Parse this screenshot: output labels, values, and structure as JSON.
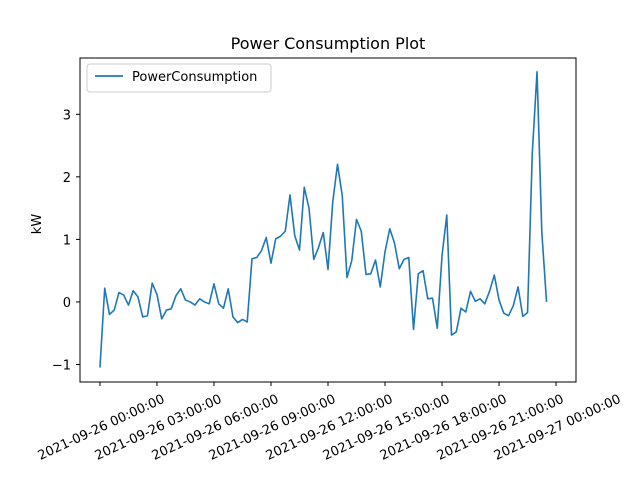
{
  "chart_data": {
    "type": "line",
    "title": "Power Consumption Plot",
    "xlabel": "",
    "ylabel": "kW",
    "x_tick_labels": [
      "2021-09-26 00:00:00",
      "2021-09-26 03:00:00",
      "2021-09-26 06:00:00",
      "2021-09-26 09:00:00",
      "2021-09-26 12:00:00",
      "2021-09-26 15:00:00",
      "2021-09-26 18:00:00",
      "2021-09-26 21:00:00",
      "2021-09-27 00:00:00"
    ],
    "y_ticks": [
      -1,
      0,
      1,
      2,
      3
    ],
    "xlim": [
      "2021-09-25 22:57:00",
      "2021-09-27 01:03:00"
    ],
    "ylim": [
      -1.28,
      3.9
    ],
    "grid": false,
    "legend_position": "top-left",
    "series": [
      {
        "name": "PowerConsumption",
        "color": "#1f77b4",
        "points": [
          [
            "2021-09-26 00:00",
            -1.05
          ],
          [
            "2021-09-26 00:15",
            0.22
          ],
          [
            "2021-09-26 00:30",
            -0.2
          ],
          [
            "2021-09-26 00:45",
            -0.13
          ],
          [
            "2021-09-26 01:00",
            0.15
          ],
          [
            "2021-09-26 01:15",
            0.11
          ],
          [
            "2021-09-26 01:30",
            -0.05
          ],
          [
            "2021-09-26 01:45",
            0.18
          ],
          [
            "2021-09-26 02:00",
            0.08
          ],
          [
            "2021-09-26 02:15",
            -0.24
          ],
          [
            "2021-09-26 02:30",
            -0.22
          ],
          [
            "2021-09-26 02:45",
            0.3
          ],
          [
            "2021-09-26 03:00",
            0.12
          ],
          [
            "2021-09-26 03:15",
            -0.27
          ],
          [
            "2021-09-26 03:30",
            -0.13
          ],
          [
            "2021-09-26 03:45",
            -0.11
          ],
          [
            "2021-09-26 04:00",
            0.1
          ],
          [
            "2021-09-26 04:15",
            0.21
          ],
          [
            "2021-09-26 04:30",
            0.03
          ],
          [
            "2021-09-26 04:45",
            0.0
          ],
          [
            "2021-09-26 05:00",
            -0.05
          ],
          [
            "2021-09-26 05:15",
            0.05
          ],
          [
            "2021-09-26 05:30",
            0.0
          ],
          [
            "2021-09-26 05:45",
            -0.03
          ],
          [
            "2021-09-26 06:00",
            0.29
          ],
          [
            "2021-09-26 06:15",
            -0.03
          ],
          [
            "2021-09-26 06:30",
            -0.1
          ],
          [
            "2021-09-26 06:45",
            0.21
          ],
          [
            "2021-09-26 07:00",
            -0.24
          ],
          [
            "2021-09-26 07:15",
            -0.33
          ],
          [
            "2021-09-26 07:30",
            -0.28
          ],
          [
            "2021-09-26 07:45",
            -0.32
          ],
          [
            "2021-09-26 08:00",
            0.69
          ],
          [
            "2021-09-26 08:15",
            0.71
          ],
          [
            "2021-09-26 08:30",
            0.82
          ],
          [
            "2021-09-26 08:45",
            1.03
          ],
          [
            "2021-09-26 09:00",
            0.62
          ],
          [
            "2021-09-26 09:15",
            1.01
          ],
          [
            "2021-09-26 09:30",
            1.05
          ],
          [
            "2021-09-26 09:45",
            1.13
          ],
          [
            "2021-09-26 10:00",
            1.71
          ],
          [
            "2021-09-26 10:15",
            1.06
          ],
          [
            "2021-09-26 10:30",
            0.83
          ],
          [
            "2021-09-26 10:45",
            1.83
          ],
          [
            "2021-09-26 11:00",
            1.5
          ],
          [
            "2021-09-26 11:15",
            0.68
          ],
          [
            "2021-09-26 11:30",
            0.87
          ],
          [
            "2021-09-26 11:45",
            1.11
          ],
          [
            "2021-09-26 12:00",
            0.52
          ],
          [
            "2021-09-26 12:15",
            1.6
          ],
          [
            "2021-09-26 12:30",
            2.2
          ],
          [
            "2021-09-26 12:45",
            1.7
          ],
          [
            "2021-09-26 13:00",
            0.39
          ],
          [
            "2021-09-26 13:15",
            0.66
          ],
          [
            "2021-09-26 13:30",
            1.32
          ],
          [
            "2021-09-26 13:45",
            1.13
          ],
          [
            "2021-09-26 14:00",
            0.44
          ],
          [
            "2021-09-26 14:15",
            0.45
          ],
          [
            "2021-09-26 14:30",
            0.67
          ],
          [
            "2021-09-26 14:45",
            0.24
          ],
          [
            "2021-09-26 15:00",
            0.8
          ],
          [
            "2021-09-26 15:15",
            1.17
          ],
          [
            "2021-09-26 15:30",
            0.94
          ],
          [
            "2021-09-26 15:45",
            0.53
          ],
          [
            "2021-09-26 16:00",
            0.68
          ],
          [
            "2021-09-26 16:15",
            0.71
          ],
          [
            "2021-09-26 16:30",
            -0.44
          ],
          [
            "2021-09-26 16:45",
            0.45
          ],
          [
            "2021-09-26 17:00",
            0.5
          ],
          [
            "2021-09-26 17:15",
            0.05
          ],
          [
            "2021-09-26 17:30",
            0.06
          ],
          [
            "2021-09-26 17:45",
            -0.42
          ],
          [
            "2021-09-26 18:00",
            0.74
          ],
          [
            "2021-09-26 18:15",
            1.39
          ],
          [
            "2021-09-26 18:30",
            -0.53
          ],
          [
            "2021-09-26 18:45",
            -0.48
          ],
          [
            "2021-09-26 19:00",
            -0.1
          ],
          [
            "2021-09-26 19:15",
            -0.16
          ],
          [
            "2021-09-26 19:30",
            0.17
          ],
          [
            "2021-09-26 19:45",
            0.01
          ],
          [
            "2021-09-26 20:00",
            0.05
          ],
          [
            "2021-09-26 20:15",
            -0.03
          ],
          [
            "2021-09-26 20:30",
            0.17
          ],
          [
            "2021-09-26 20:45",
            0.43
          ],
          [
            "2021-09-26 21:00",
            0.03
          ],
          [
            "2021-09-26 21:15",
            -0.18
          ],
          [
            "2021-09-26 21:30",
            -0.22
          ],
          [
            "2021-09-26 21:45",
            -0.06
          ],
          [
            "2021-09-26 22:00",
            0.24
          ],
          [
            "2021-09-26 22:15",
            -0.23
          ],
          [
            "2021-09-26 22:30",
            -0.17
          ],
          [
            "2021-09-26 22:45",
            2.38
          ],
          [
            "2021-09-26 23:00",
            3.68
          ],
          [
            "2021-09-26 23:15",
            1.12
          ],
          [
            "2021-09-26 23:30",
            0.0
          ]
        ]
      }
    ]
  }
}
